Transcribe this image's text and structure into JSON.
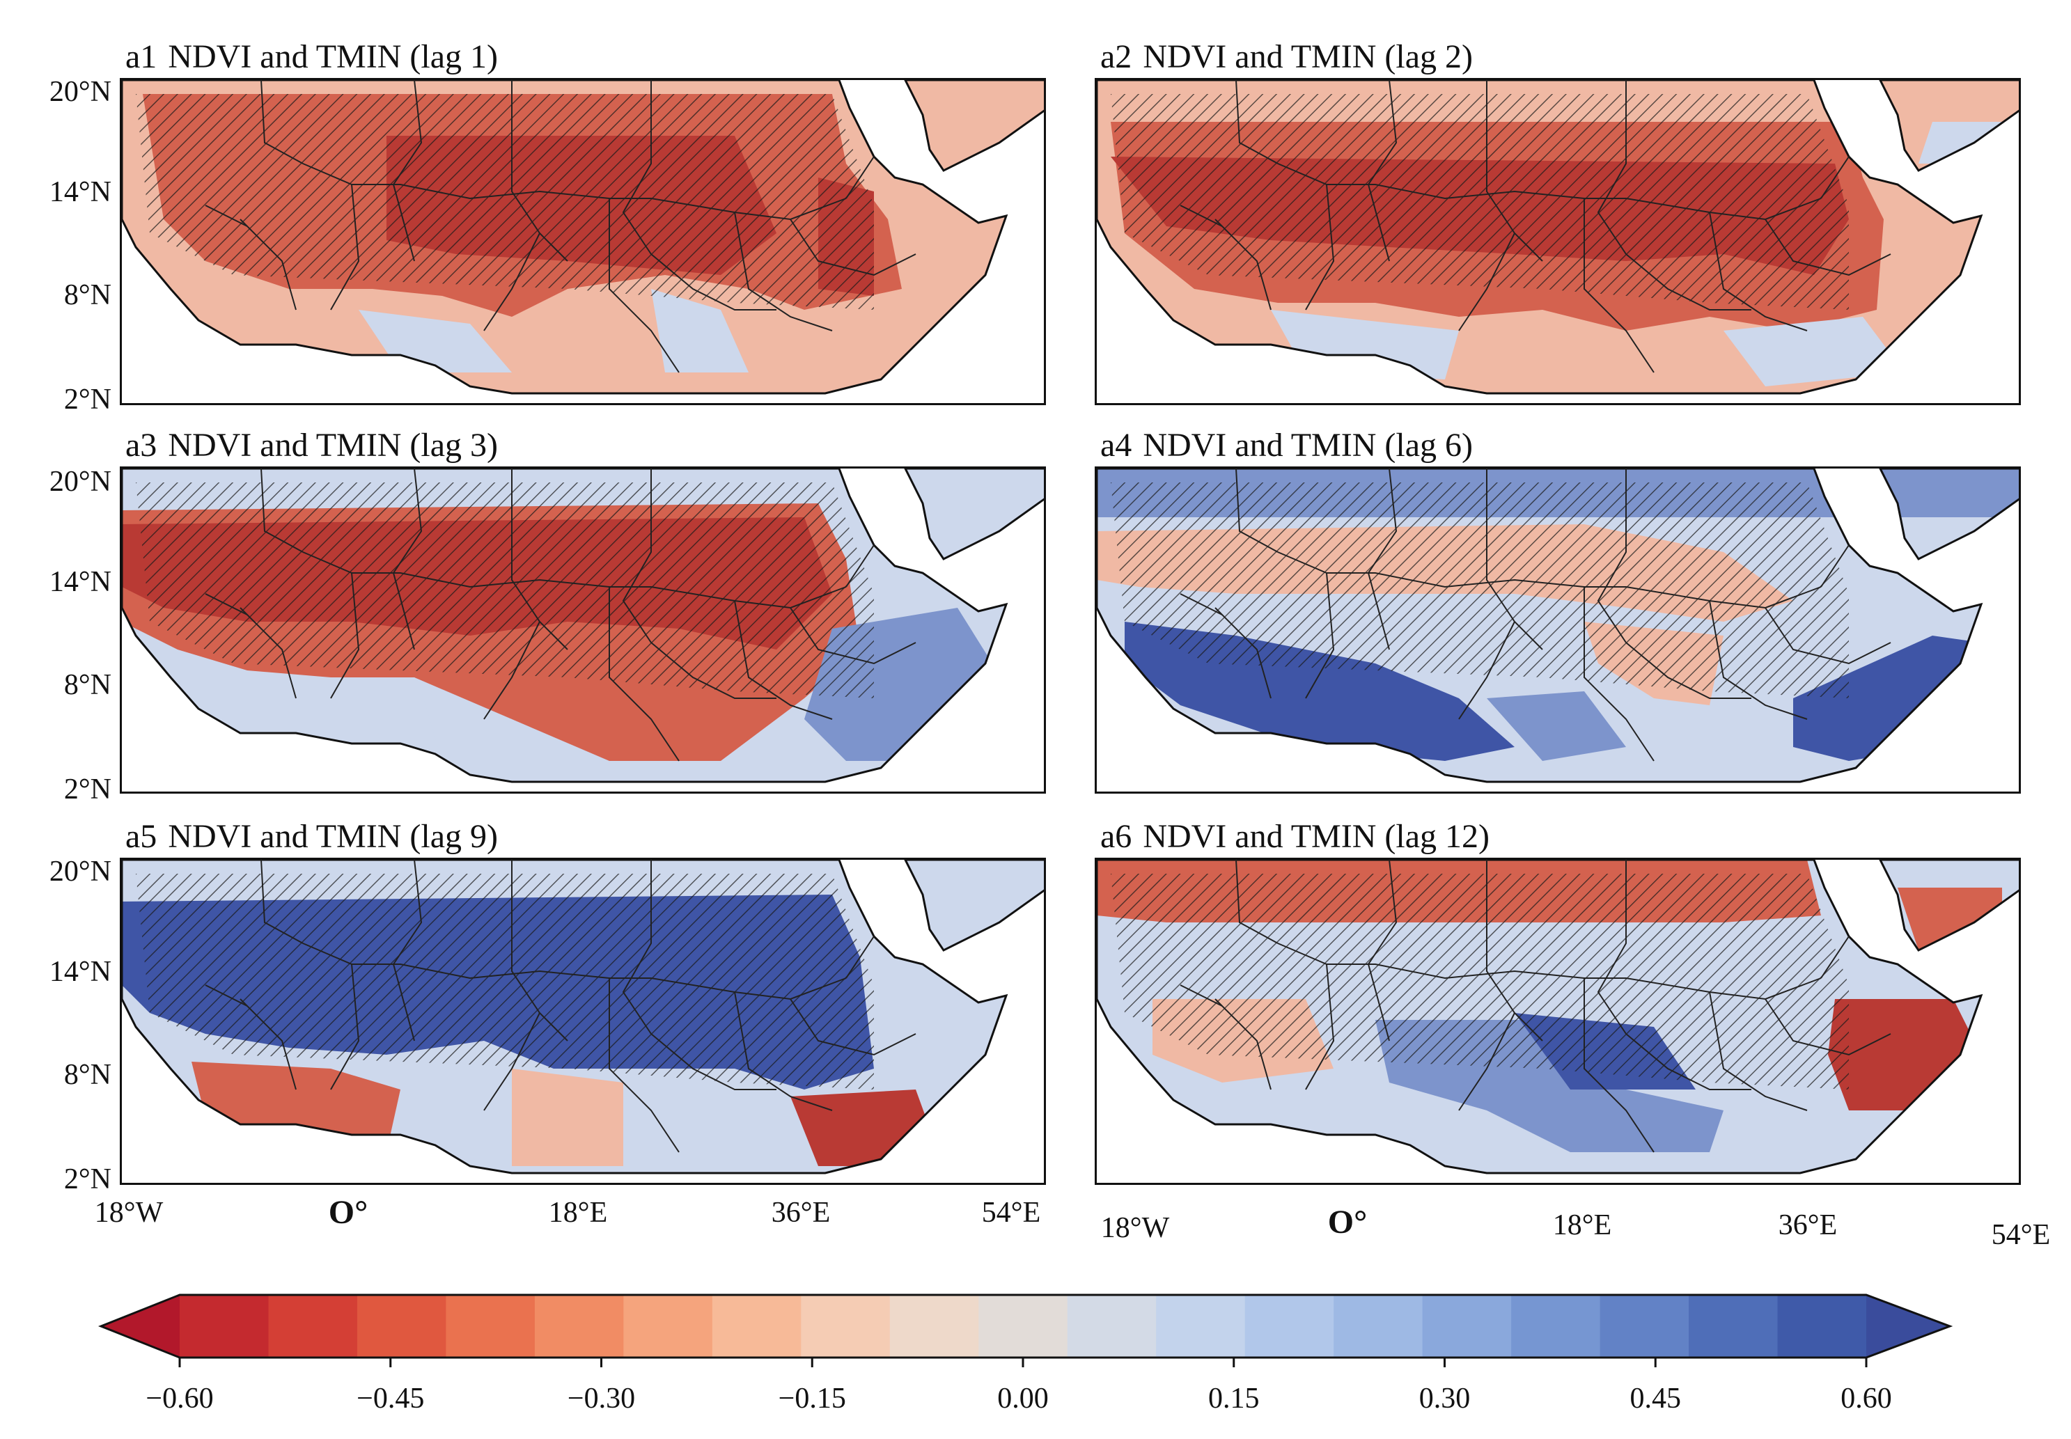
{
  "panels": [
    {
      "id": "a1",
      "title": "NDVI and TMIN (lag 1)"
    },
    {
      "id": "a2",
      "title": "NDVI and TMIN (lag 2)"
    },
    {
      "id": "a3",
      "title": "NDVI and TMIN  (lag 3)"
    },
    {
      "id": "a4",
      "title": "NDVI and TMIN (lag 6)"
    },
    {
      "id": "a5",
      "title": "NDVI and TMIN (lag 9)"
    },
    {
      "id": "a6",
      "title": "NDVI and TMIN (lag 12)"
    }
  ],
  "lat_labels": [
    "20°N",
    "14°N",
    "8°N",
    "2°N"
  ],
  "lon_labels_left": [
    "18°W",
    "O°",
    "18°E",
    "36°E",
    "54°E"
  ],
  "lon_labels_right": [
    "18°W",
    "O°",
    "18°E",
    "36°E",
    "54°E"
  ],
  "colorbar": {
    "ticks": [
      "−0.60",
      "−0.45",
      "−0.30",
      "−0.15",
      "0.00",
      "0.15",
      "0.30",
      "0.45",
      "0.60"
    ],
    "colors": [
      "#b2182b",
      "#c42a2f",
      "#d43f35",
      "#e0583f",
      "#ea724f",
      "#f18c64",
      "#f5a47d",
      "#f7ba98",
      "#f5ccb4",
      "#eed9ca",
      "#e2dcd8",
      "#d3dae6",
      "#c3d3ec",
      "#b1c7ea",
      "#9eb9e4",
      "#8aa8dc",
      "#7696d2",
      "#6282c6",
      "#4f6eb8",
      "#3f5aa9",
      "#3a4c9c"
    ]
  }
}
